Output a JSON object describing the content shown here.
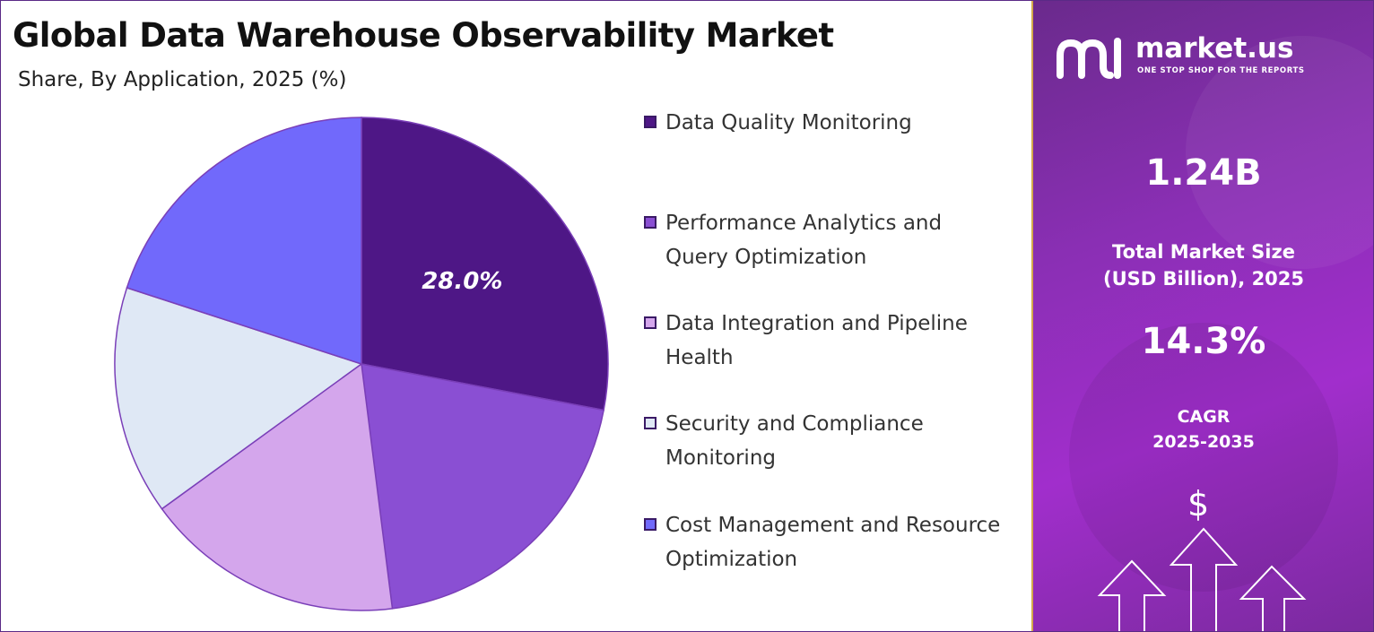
{
  "header": {
    "title": "Global Data Warehouse Observability Market",
    "subtitle": "Share, By Application, 2025 (%)"
  },
  "chart_data": {
    "type": "pie",
    "title": "Global Data Warehouse Observability Market",
    "subtitle": "Share, By Application, 2025 (%)",
    "slices": [
      {
        "label": "Data Quality Monitoring",
        "value": 28.0,
        "color": "#4e1786",
        "data_label": "28.0%"
      },
      {
        "label": "Performance Analytics and Query Optimization",
        "value": 20.0,
        "color": "#8a4fd3",
        "data_label": ""
      },
      {
        "label": "Data Integration and Pipeline Health",
        "value": 17.0,
        "color": "#d4a6ec",
        "data_label": ""
      },
      {
        "label": "Security and Compliance Monitoring",
        "value": 15.0,
        "color": "#dfe8f5",
        "data_label": ""
      },
      {
        "label": "Cost Management and Resource Optimization",
        "value": 20.0,
        "color": "#7169fb",
        "data_label": ""
      }
    ],
    "legend_position": "right"
  },
  "legend": {
    "items": [
      {
        "label": "Data Quality Monitoring",
        "color": "#4e1786"
      },
      {
        "label": "Performance Analytics and Query Optimization",
        "color": "#8a4fd3"
      },
      {
        "label": "Data Integration and Pipeline Health",
        "color": "#d4a6ec"
      },
      {
        "label": "Security and Compliance Monitoring",
        "color": "#dfe8f5"
      },
      {
        "label": "Cost Management and Resource Optimization",
        "color": "#7169fb"
      }
    ]
  },
  "sidebar": {
    "brand": "market.us",
    "tagline": "ONE STOP SHOP FOR THE REPORTS",
    "market_size_value": "1.24B",
    "market_size_label_line1": "Total Market Size",
    "market_size_label_line2": "(USD Billion), 2025",
    "cagr_value": "14.3%",
    "cagr_label_line1": "CAGR",
    "cagr_label_line2": "2025-2035",
    "dollar_symbol": "$",
    "icons": [
      "market-us-logo",
      "dollar-icon",
      "growth-arrows-icon"
    ]
  }
}
